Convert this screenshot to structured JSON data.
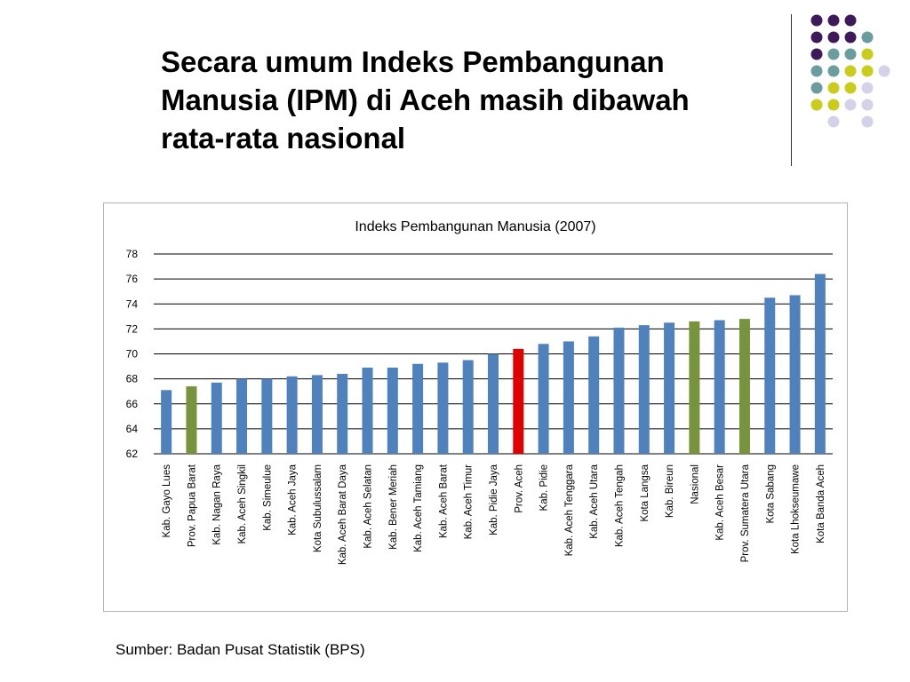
{
  "slide": {
    "title_lines": [
      "Secara umum Indeks Pembangunan",
      "Manusia (IPM) di Aceh masih dibawah",
      "rata-rata nasional"
    ],
    "source": "Sumber: Badan Pusat Statistik (BPS)"
  },
  "decoration": {
    "dot_colors": {
      "purple": "#3e1a5b",
      "teal": "#6b9c9e",
      "yellow": "#c9cc1a",
      "lavender": "#d3d2e8"
    }
  },
  "chart_data": {
    "type": "bar",
    "title": "Indeks Pembangunan Manusia (2007)",
    "xlabel": "",
    "ylabel": "",
    "ylim": [
      62,
      78
    ],
    "yticks": [
      62,
      64,
      66,
      68,
      70,
      72,
      74,
      76,
      78
    ],
    "grid": true,
    "legend": "none",
    "categories": [
      "Kab. Gayo Lues",
      "Prov. Papua Barat",
      "Kab. Nagan Raya",
      "Kab. Aceh Singkil",
      "Kab. Simeulue",
      "Kab. Aceh Jaya",
      "Kota Subulussalam",
      "Kab. Aceh Barat Daya",
      "Kab. Aceh Selatan",
      "Kab. Bener Meriah",
      "Kab. Aceh Tamiang",
      "Kab. Aceh Barat",
      "Kab. Aceh Timur",
      "Kab. Pidie Jaya",
      "Prov. Aceh",
      "Kab. Pidie",
      "Kab. Aceh Tenggara",
      "Kab. Aceh Utara",
      "Kab. Aceh Tengah",
      "Kota Langsa",
      "Kab. Bireun",
      "Nasional",
      "Kab. Aceh Besar",
      "Prov. Sumatera Utara",
      "Kota Sabang",
      "Kota Lhokseumawe",
      "Kota Banda Aceh"
    ],
    "values": [
      67.1,
      67.4,
      67.7,
      68.0,
      68.0,
      68.2,
      68.3,
      68.4,
      68.9,
      68.9,
      69.2,
      69.3,
      69.5,
      70.0,
      70.4,
      70.8,
      71.0,
      71.4,
      72.1,
      72.3,
      72.5,
      72.6,
      72.7,
      72.8,
      74.5,
      74.7,
      76.4
    ],
    "bar_colors": [
      "#4f81bd",
      "#77933c",
      "#4f81bd",
      "#4f81bd",
      "#4f81bd",
      "#4f81bd",
      "#4f81bd",
      "#4f81bd",
      "#4f81bd",
      "#4f81bd",
      "#4f81bd",
      "#4f81bd",
      "#4f81bd",
      "#4f81bd",
      "#e00000",
      "#4f81bd",
      "#4f81bd",
      "#4f81bd",
      "#4f81bd",
      "#4f81bd",
      "#4f81bd",
      "#77933c",
      "#4f81bd",
      "#77933c",
      "#4f81bd",
      "#4f81bd",
      "#4f81bd"
    ],
    "gridline_color": "#000000"
  }
}
